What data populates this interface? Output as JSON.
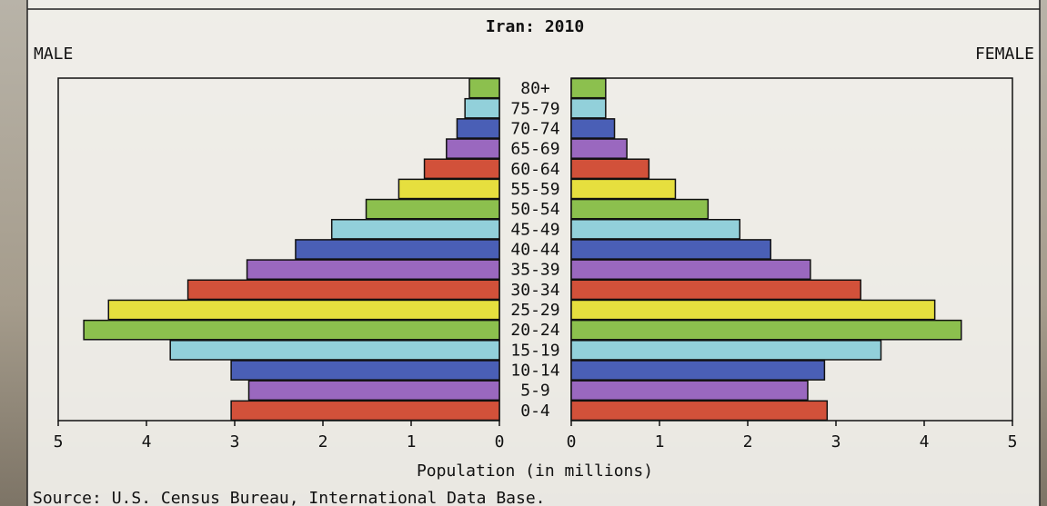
{
  "chart_data": {
    "type": "pyramid",
    "title": "Iran: 2010",
    "categories": [
      "80+",
      "75-79",
      "70-74",
      "65-69",
      "60-64",
      "55-59",
      "50-54",
      "45-49",
      "40-44",
      "35-39",
      "30-34",
      "25-29",
      "20-24",
      "15-19",
      "10-14",
      "5-9",
      "0-4"
    ],
    "colors": [
      "#8cc04e",
      "#92d0da",
      "#4a5fb6",
      "#9a68bf",
      "#d2513a",
      "#e6df3e",
      "#8cc04e",
      "#92d0da",
      "#4a5fb6",
      "#9a68bf",
      "#d2513a",
      "#e6df3e",
      "#8cc04e",
      "#92d0da",
      "#4a5fb6",
      "#9a68bf",
      "#d2513a"
    ],
    "series": [
      {
        "name": "MALE",
        "values": [
          0.34,
          0.39,
          0.48,
          0.6,
          0.85,
          1.14,
          1.51,
          1.9,
          2.31,
          2.86,
          3.53,
          4.43,
          4.71,
          3.73,
          3.04,
          2.84,
          3.04
        ]
      },
      {
        "name": "FEMALE",
        "values": [
          0.39,
          0.39,
          0.49,
          0.63,
          0.88,
          1.18,
          1.55,
          1.91,
          2.26,
          2.71,
          3.28,
          4.12,
          4.42,
          3.51,
          2.87,
          2.68,
          2.9
        ]
      }
    ],
    "xlim": [
      0,
      5
    ],
    "xticks": [
      0,
      1,
      2,
      3,
      4,
      5
    ],
    "x_label": "Population (in millions)",
    "source": "Source: U.S. Census Bureau, International Data Base."
  }
}
